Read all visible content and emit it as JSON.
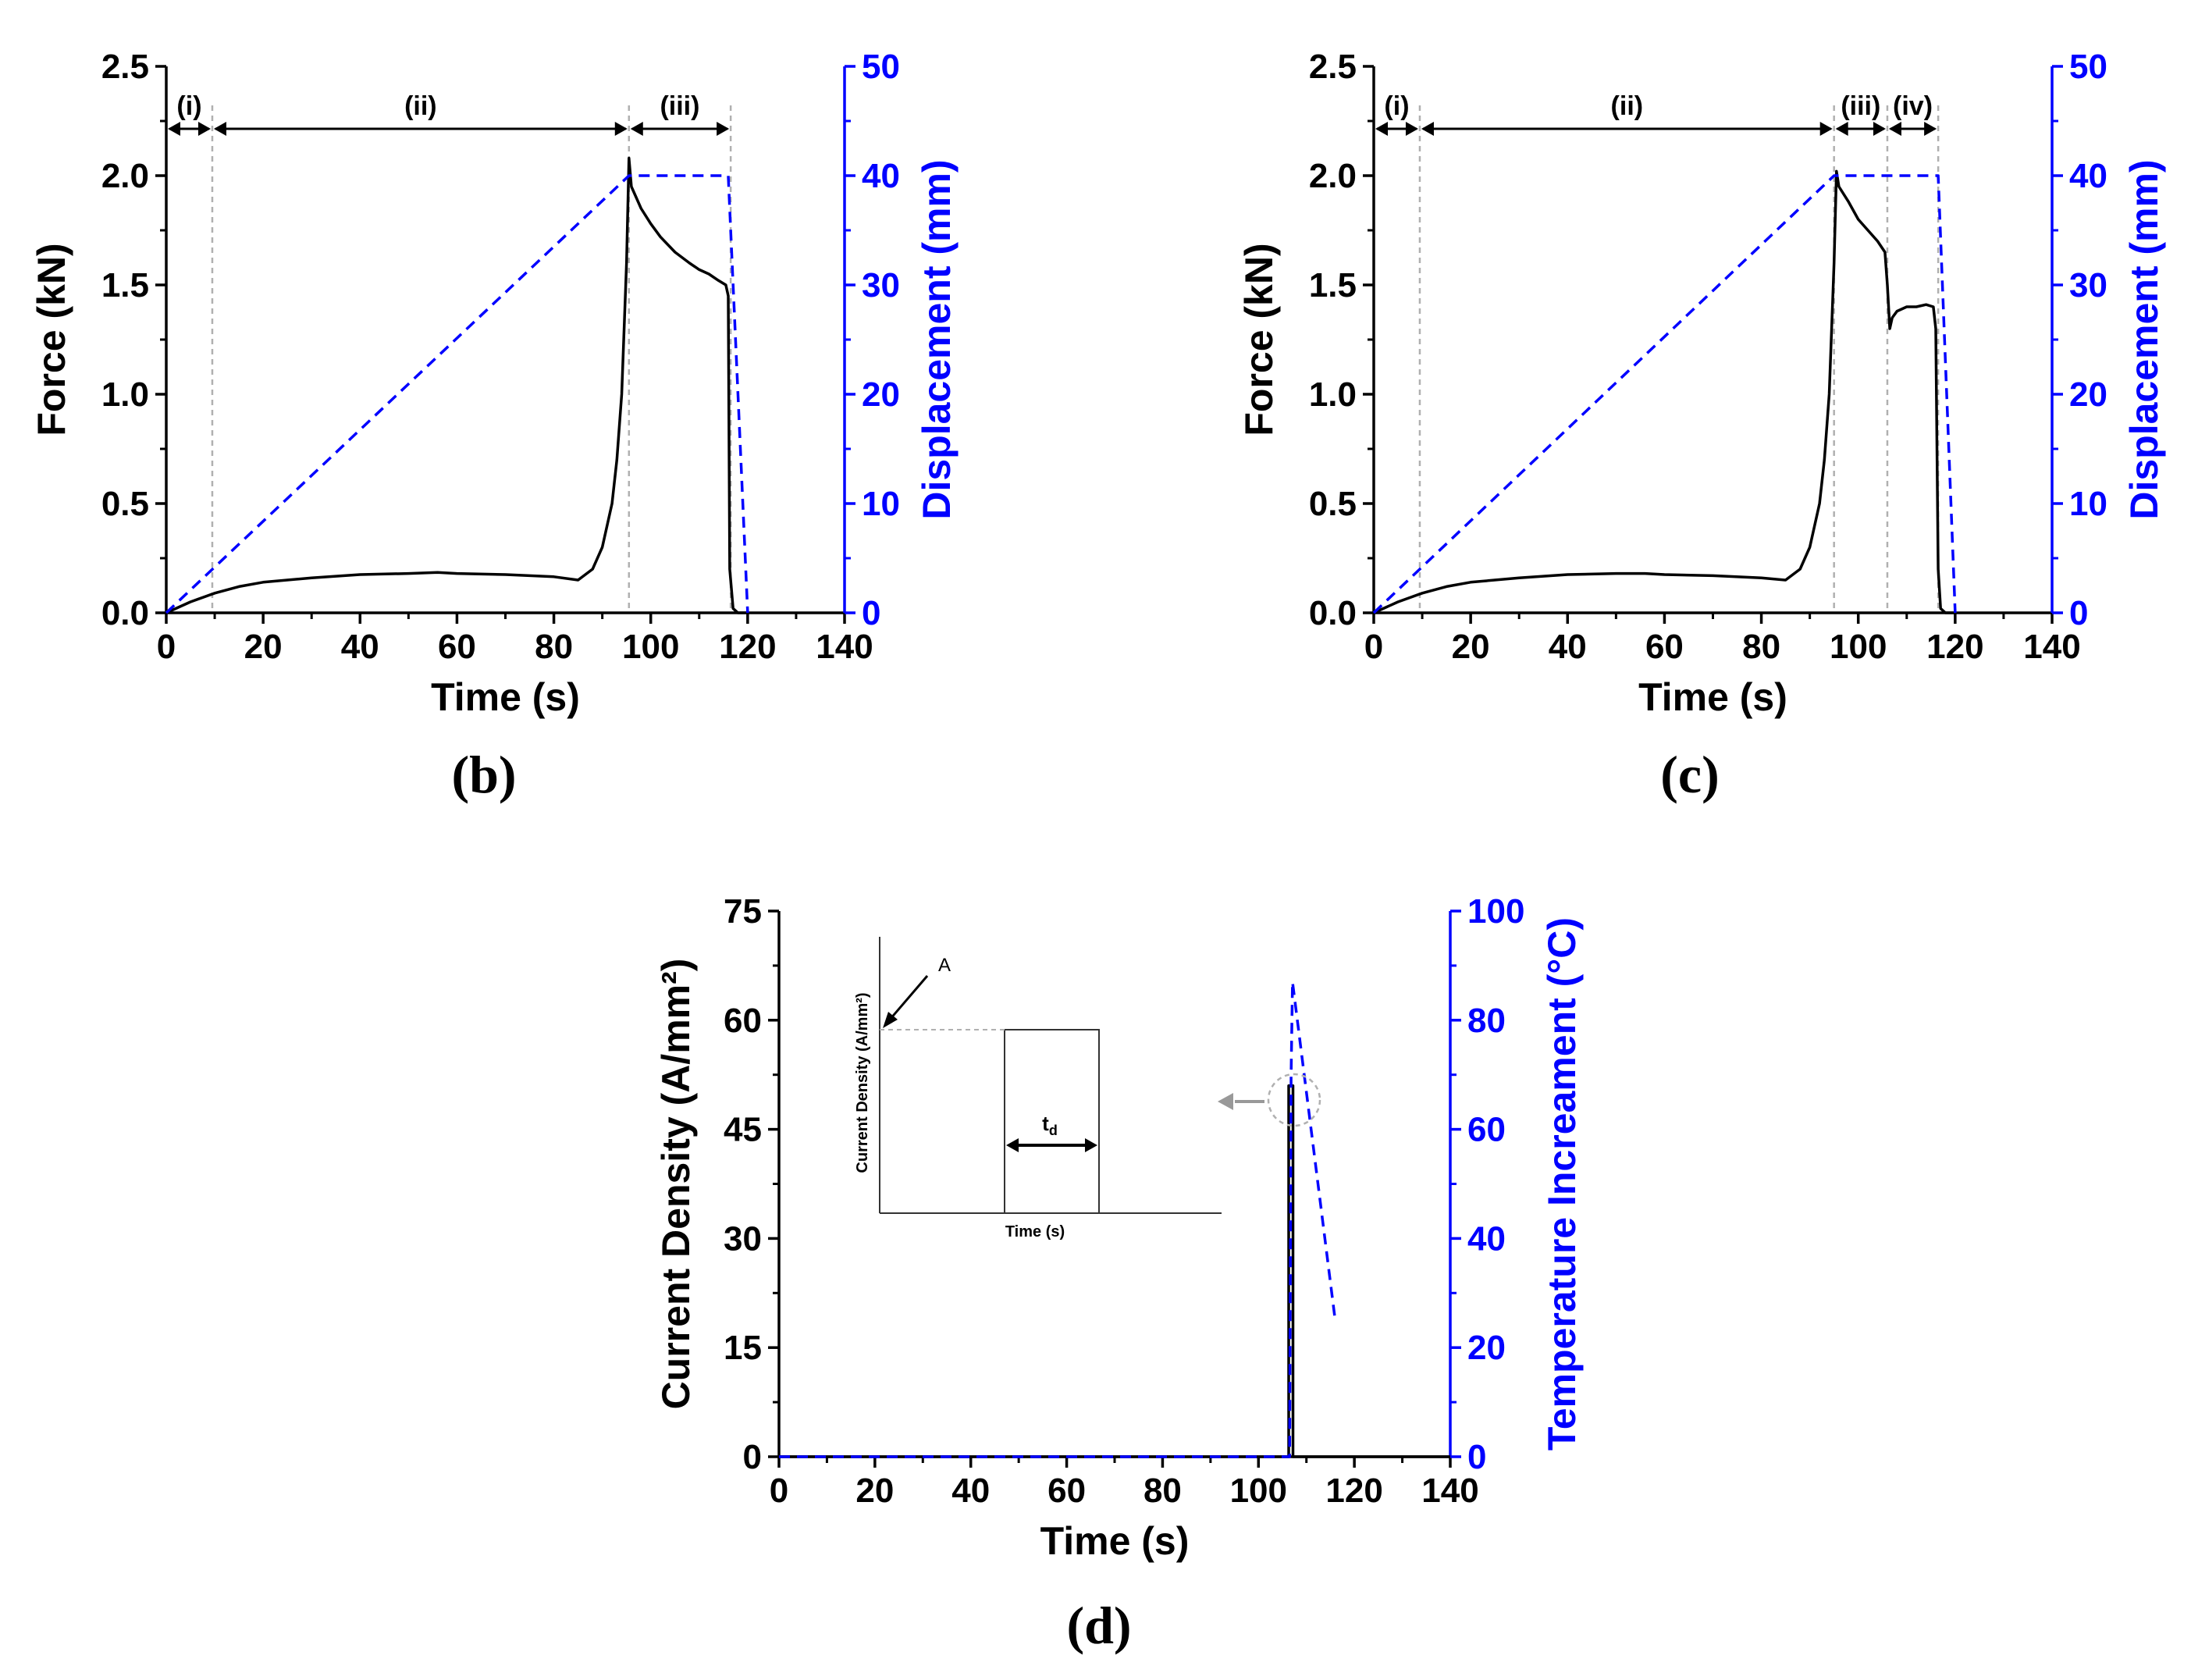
{
  "colors": {
    "black": "#000000",
    "blue": "#0000ff",
    "grey": "#b0b0b0"
  },
  "chart_data": [
    {
      "panel": "b",
      "type": "line",
      "panel_label": "(b)",
      "xlabel": "Time (s)",
      "ylabel": "Force (kN)",
      "y2label": "Displacement (mm)",
      "xlim": [
        0,
        140
      ],
      "ylim": [
        0,
        2.5
      ],
      "y2lim": [
        0,
        50
      ],
      "xticks": [
        "0",
        "20",
        "40",
        "60",
        "80",
        "100",
        "120",
        "140"
      ],
      "yticks": [
        "0.0",
        "0.5",
        "1.0",
        "1.5",
        "2.0",
        "2.5"
      ],
      "y2ticks": [
        "0",
        "10",
        "20",
        "30",
        "40",
        "50"
      ],
      "regions": [
        {
          "label": "(i)",
          "start": 0,
          "end": 9.5
        },
        {
          "label": "(ii)",
          "start": 9.5,
          "end": 95.5
        },
        {
          "label": "(iii)",
          "start": 95.5,
          "end": 116.5
        }
      ],
      "boundaries": [
        9.5,
        95.5,
        116.5
      ],
      "series": [
        {
          "name": "Force",
          "axis": "left",
          "color": "#000000",
          "style": "solid",
          "x": [
            0,
            2,
            5,
            10,
            15,
            20,
            30,
            40,
            50,
            56,
            60,
            70,
            80,
            85,
            88,
            90,
            92,
            93,
            94,
            95,
            95.5,
            96,
            97,
            98,
            100,
            102,
            105,
            108,
            110,
            112,
            114,
            115.5,
            116,
            116.3,
            117,
            118,
            120
          ],
          "y": [
            0,
            0.02,
            0.05,
            0.09,
            0.12,
            0.14,
            0.16,
            0.175,
            0.18,
            0.185,
            0.18,
            0.175,
            0.165,
            0.15,
            0.2,
            0.3,
            0.5,
            0.7,
            1.0,
            1.6,
            2.08,
            1.95,
            1.9,
            1.85,
            1.78,
            1.72,
            1.65,
            1.6,
            1.57,
            1.55,
            1.52,
            1.5,
            1.45,
            0.2,
            0.02,
            0.0,
            0.0
          ]
        },
        {
          "name": "Displacement",
          "axis": "right",
          "color": "#0000ff",
          "style": "dashed",
          "x": [
            0,
            95.5,
            116,
            120
          ],
          "y": [
            0,
            40,
            40,
            0
          ]
        }
      ]
    },
    {
      "panel": "c",
      "type": "line",
      "panel_label": "(c)",
      "xlabel": "Time (s)",
      "ylabel": "Force (kN)",
      "y2label": "Displacement (mm)",
      "xlim": [
        0,
        140
      ],
      "ylim": [
        0,
        2.5
      ],
      "y2lim": [
        0,
        50
      ],
      "xticks": [
        "0",
        "20",
        "40",
        "60",
        "80",
        "100",
        "120",
        "140"
      ],
      "yticks": [
        "0.0",
        "0.5",
        "1.0",
        "1.5",
        "2.0",
        "2.5"
      ],
      "y2ticks": [
        "0",
        "10",
        "20",
        "30",
        "40",
        "50"
      ],
      "regions": [
        {
          "label": "(i)",
          "start": 0,
          "end": 9.5
        },
        {
          "label": "(ii)",
          "start": 9.5,
          "end": 95
        },
        {
          "label": "(iii)",
          "start": 95,
          "end": 106
        },
        {
          "label": "(iv)",
          "start": 106,
          "end": 116.5
        }
      ],
      "boundaries": [
        9.5,
        95,
        106,
        116.5
      ],
      "series": [
        {
          "name": "Force",
          "axis": "left",
          "color": "#000000",
          "style": "solid",
          "x": [
            0,
            2,
            5,
            10,
            15,
            20,
            30,
            40,
            50,
            56,
            60,
            70,
            80,
            85,
            88,
            90,
            92,
            93,
            94,
            95,
            95.5,
            96,
            98,
            100,
            102,
            104,
            105.5,
            106,
            106.5,
            107,
            108,
            110,
            112,
            114,
            115.5,
            116,
            116.5,
            117,
            118,
            120
          ],
          "y": [
            0,
            0.02,
            0.05,
            0.09,
            0.12,
            0.14,
            0.16,
            0.175,
            0.18,
            0.18,
            0.175,
            0.17,
            0.16,
            0.15,
            0.2,
            0.3,
            0.5,
            0.7,
            1.0,
            1.6,
            2.02,
            1.95,
            1.88,
            1.8,
            1.75,
            1.7,
            1.65,
            1.5,
            1.3,
            1.35,
            1.38,
            1.4,
            1.4,
            1.41,
            1.4,
            1.3,
            0.2,
            0.02,
            0.0,
            0.0
          ]
        },
        {
          "name": "Displacement",
          "axis": "right",
          "color": "#0000ff",
          "style": "dashed",
          "x": [
            0,
            95,
            116.5,
            120
          ],
          "y": [
            0,
            40,
            40,
            0
          ]
        }
      ]
    },
    {
      "panel": "d",
      "type": "line",
      "panel_label": "(d)",
      "xlabel": "Time (s)",
      "ylabel": "Current Density (A/mm²)",
      "y2label": "Temperature Increament (°C)",
      "xlim": [
        0,
        140
      ],
      "ylim": [
        0,
        75
      ],
      "y2lim": [
        0,
        100
      ],
      "xticks": [
        "0",
        "20",
        "40",
        "60",
        "80",
        "100",
        "120",
        "140"
      ],
      "yticks": [
        "0",
        "15",
        "30",
        "45",
        "60",
        "75"
      ],
      "y2ticks": [
        "0",
        "20",
        "40",
        "60",
        "80",
        "100"
      ],
      "series": [
        {
          "name": "Current Density",
          "axis": "left",
          "color": "#000000",
          "style": "solid",
          "x": [
            0,
            106.3,
            106.3,
            107.2,
            107.2,
            140
          ],
          "y": [
            0,
            0,
            51,
            51,
            0,
            0
          ]
        },
        {
          "name": "Temperature Increament",
          "axis": "right",
          "color": "#0000ff",
          "style": "dashed",
          "x": [
            0,
            106.5,
            106.8,
            107.1,
            116
          ],
          "y": [
            0,
            0,
            70,
            87,
            25
          ]
        }
      ],
      "inset": {
        "xlabel": "Time (s)",
        "ylabel": "Current Density (A/mm²)",
        "amplitude_label": "A",
        "duration_label": "td"
      }
    }
  ]
}
